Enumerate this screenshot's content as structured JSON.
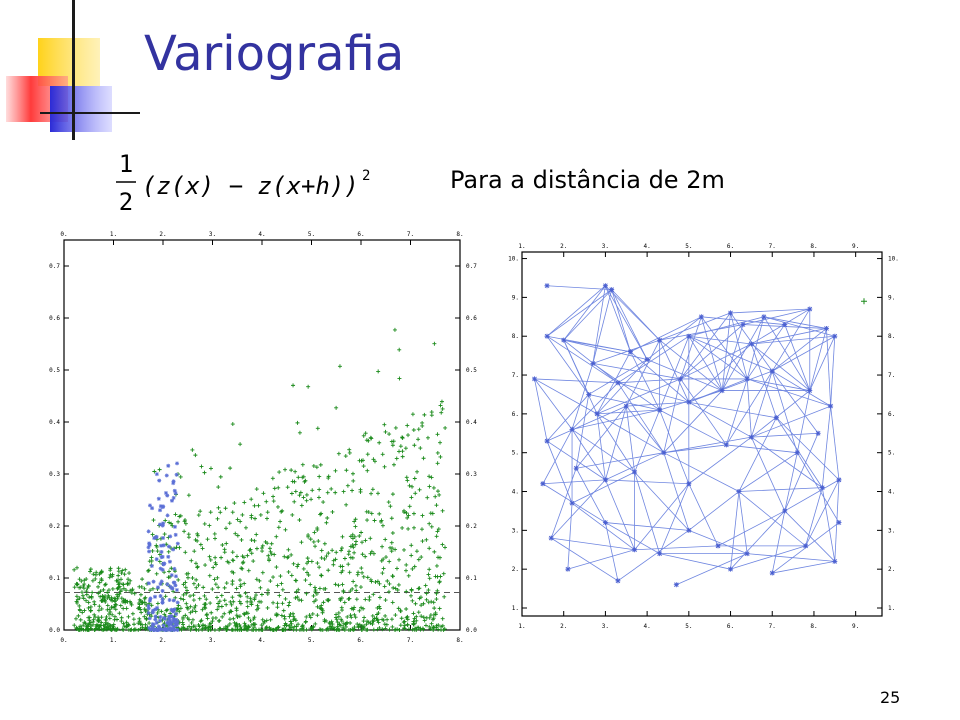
{
  "slide": {
    "title": "Variografia",
    "subtitle": "Para a distância de 2m",
    "page_number": "25",
    "formula": {
      "numerator": "1",
      "denominator": "2",
      "body": "(z(x) − z(x+h))",
      "exponent": "2"
    },
    "colors": {
      "title": "#3333a0",
      "green_points": "#1a8a1a",
      "blue_points": "#5b6fd6",
      "network_lines": "#6f86e0"
    }
  },
  "chart_data": [
    {
      "type": "scatter",
      "title": "",
      "xlabel": "",
      "ylabel": "",
      "xlim": [
        0,
        8
      ],
      "ylim": [
        0,
        0.75
      ],
      "x_ticks": [
        "0.",
        "1.",
        "2.",
        "3.",
        "4.",
        "5.",
        "6.",
        "7.",
        "8."
      ],
      "y_ticks": [
        "0.0",
        "0.1",
        "0.2",
        "0.3",
        "0.4",
        "0.5",
        "0.6",
        "0.7"
      ],
      "reference_line_y": 0.072,
      "series": [
        {
          "marker": "plus",
          "color": "#1a8a1a",
          "x_range": [
            0.2,
            7.7
          ],
          "y_range": [
            0,
            0.67
          ]
        },
        {
          "marker": "asterisk",
          "color": "#5b6fd6",
          "x_range": [
            1.7,
            2.3
          ],
          "y_range": [
            0,
            0.33
          ]
        }
      ],
      "grid": false
    },
    {
      "type": "scatter",
      "title": "",
      "xlabel": "",
      "ylabel": "",
      "xlim": [
        1,
        9.2
      ],
      "ylim": [
        1,
        10
      ],
      "x_ticks": [
        "1.",
        "2.",
        "3.",
        "4.",
        "5.",
        "6.",
        "7.",
        "8.",
        "9."
      ],
      "y_ticks": [
        "1.",
        "2.",
        "3.",
        "4.",
        "5.",
        "6.",
        "7.",
        "8.",
        "9.",
        "10."
      ],
      "points": [
        [
          1.6,
          9.3
        ],
        [
          3.0,
          9.3
        ],
        [
          3.15,
          9.2
        ],
        [
          1.6,
          8.0
        ],
        [
          2.0,
          7.9
        ],
        [
          1.3,
          6.9
        ],
        [
          2.6,
          6.5
        ],
        [
          3.3,
          6.8
        ],
        [
          3.6,
          7.6
        ],
        [
          4.0,
          7.4
        ],
        [
          4.3,
          7.9
        ],
        [
          5.0,
          8.0
        ],
        [
          5.3,
          8.5
        ],
        [
          6.0,
          8.6
        ],
        [
          6.3,
          8.3
        ],
        [
          6.8,
          8.5
        ],
        [
          7.3,
          8.3
        ],
        [
          7.9,
          8.7
        ],
        [
          8.3,
          8.2
        ],
        [
          8.5,
          8.0
        ],
        [
          1.6,
          5.3
        ],
        [
          2.2,
          5.6
        ],
        [
          2.8,
          6.0
        ],
        [
          3.5,
          6.2
        ],
        [
          4.3,
          6.1
        ],
        [
          5.0,
          6.3
        ],
        [
          5.8,
          6.6
        ],
        [
          6.4,
          6.9
        ],
        [
          7.0,
          7.1
        ],
        [
          7.9,
          6.6
        ],
        [
          8.4,
          6.2
        ],
        [
          1.5,
          4.2
        ],
        [
          2.3,
          4.6
        ],
        [
          3.0,
          4.3
        ],
        [
          3.7,
          4.5
        ],
        [
          4.4,
          5.0
        ],
        [
          5.0,
          4.2
        ],
        [
          5.9,
          5.2
        ],
        [
          6.5,
          5.4
        ],
        [
          7.1,
          5.9
        ],
        [
          7.6,
          5.0
        ],
        [
          8.2,
          4.1
        ],
        [
          8.6,
          4.3
        ],
        [
          1.7,
          2.8
        ],
        [
          2.1,
          2.0
        ],
        [
          3.0,
          3.2
        ],
        [
          3.7,
          2.5
        ],
        [
          4.3,
          2.4
        ],
        [
          5.0,
          3.0
        ],
        [
          5.7,
          2.6
        ],
        [
          6.4,
          2.4
        ],
        [
          7.0,
          1.9
        ],
        [
          7.8,
          2.6
        ],
        [
          8.5,
          2.2
        ],
        [
          8.6,
          3.2
        ],
        [
          3.3,
          1.7
        ],
        [
          4.7,
          1.6
        ],
        [
          6.0,
          2.0
        ],
        [
          2.2,
          3.7
        ],
        [
          6.2,
          4.0
        ],
        [
          7.3,
          3.5
        ],
        [
          8.1,
          5.5
        ],
        [
          2.7,
          7.3
        ],
        [
          6.5,
          7.8
        ],
        [
          4.8,
          6.9
        ]
      ],
      "outlier": [
        9.2,
        8.9
      ],
      "grid": false
    }
  ]
}
